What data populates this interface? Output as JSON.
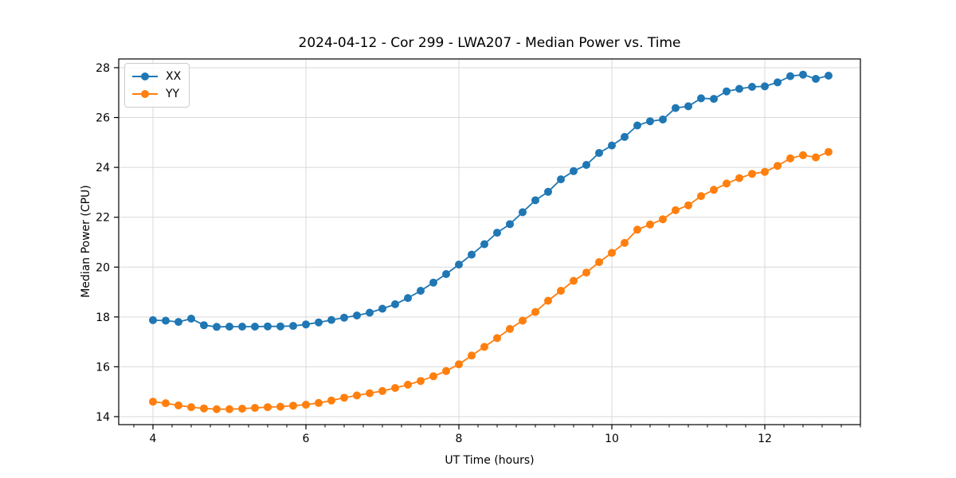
{
  "chart_data": {
    "type": "line",
    "title": "2024-04-12 - Cor 299 - LWA207 - Median Power vs. Time",
    "xlabel": "UT Time (hours)",
    "ylabel": "Median Power (CPU)",
    "xlim": [
      3.552,
      13.25
    ],
    "ylim": [
      13.68,
      28.35
    ],
    "xticks": [
      4,
      6,
      8,
      10,
      12
    ],
    "yticks": [
      14,
      16,
      18,
      20,
      22,
      24,
      26,
      28
    ],
    "x_minor_tick_step": 0.25,
    "grid": true,
    "grid_color": "#d9d9d9",
    "axis_color": "#000000",
    "legend_position": "upper left",
    "marker": "circle",
    "x": [
      4.0,
      4.167,
      4.333,
      4.5,
      4.667,
      4.833,
      5.0,
      5.167,
      5.333,
      5.5,
      5.667,
      5.833,
      6.0,
      6.167,
      6.333,
      6.5,
      6.667,
      6.833,
      7.0,
      7.167,
      7.333,
      7.5,
      7.667,
      7.833,
      8.0,
      8.167,
      8.333,
      8.5,
      8.667,
      8.833,
      9.0,
      9.167,
      9.333,
      9.5,
      9.667,
      9.833,
      10.0,
      10.167,
      10.333,
      10.5,
      10.667,
      10.833,
      11.0,
      11.167,
      11.333,
      11.5,
      11.667,
      11.833,
      12.0,
      12.167,
      12.333,
      12.5,
      12.667,
      12.833
    ],
    "series": [
      {
        "name": "XX",
        "color": "#1f77b4",
        "values": [
          17.87,
          17.85,
          17.8,
          17.93,
          17.67,
          17.6,
          17.61,
          17.61,
          17.61,
          17.62,
          17.62,
          17.64,
          17.7,
          17.78,
          17.88,
          17.97,
          18.06,
          18.17,
          18.33,
          18.51,
          18.76,
          19.05,
          19.38,
          19.72,
          20.1,
          20.5,
          20.92,
          21.38,
          21.72,
          22.2,
          22.68,
          23.02,
          23.52,
          23.85,
          24.1,
          24.58,
          24.88,
          25.22,
          25.68,
          25.85,
          25.92,
          26.38,
          26.45,
          26.77,
          26.75,
          27.05,
          27.15,
          27.23,
          27.25,
          27.41,
          27.66,
          27.72,
          27.55,
          27.68
        ]
      },
      {
        "name": "YY",
        "color": "#ff7f0e",
        "values": [
          14.6,
          14.54,
          14.45,
          14.38,
          14.33,
          14.3,
          14.3,
          14.32,
          14.35,
          14.38,
          14.4,
          14.44,
          14.48,
          14.55,
          14.65,
          14.76,
          14.85,
          14.94,
          15.03,
          15.15,
          15.28,
          15.43,
          15.62,
          15.83,
          16.1,
          16.45,
          16.8,
          17.15,
          17.52,
          17.85,
          18.2,
          18.65,
          19.05,
          19.45,
          19.78,
          20.2,
          20.57,
          20.97,
          21.5,
          21.71,
          21.92,
          22.28,
          22.48,
          22.85,
          23.1,
          23.35,
          23.57,
          23.74,
          23.82,
          24.06,
          24.36,
          24.49,
          24.4,
          24.62
        ]
      }
    ]
  }
}
